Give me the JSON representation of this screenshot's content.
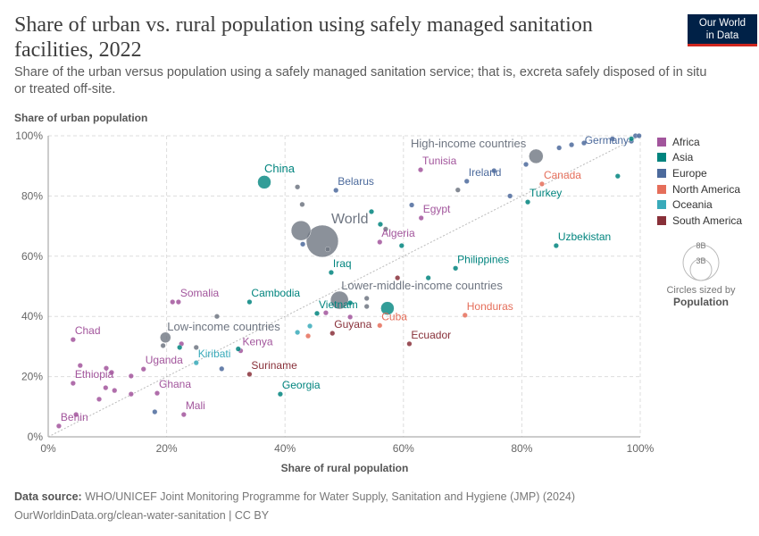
{
  "header": {
    "title": "Share of urban vs. rural population using safely managed sanitation facilities, 2022",
    "subtitle": "Share of the urban versus population using a safely managed sanitation service; that is, excreta safely disposed of in situ or treated off-site.",
    "logo_line1": "Our World",
    "logo_line2": "in Data"
  },
  "legend": {
    "items": [
      {
        "label": "Africa",
        "color": "#a2559c"
      },
      {
        "label": "Asia",
        "color": "#00847e"
      },
      {
        "label": "Europe",
        "color": "#4c6a9c"
      },
      {
        "label": "North America",
        "color": "#e56e5a"
      },
      {
        "label": "Oceania",
        "color": "#38aaba"
      },
      {
        "label": "South America",
        "color": "#883039"
      }
    ],
    "size_big": "8B",
    "size_small": "3B",
    "size_caption": "Circles sized by",
    "size_variable": "Population"
  },
  "footer": {
    "source_label": "Data source:",
    "source": "WHO/UNICEF Joint Monitoring Programme for Water Supply, Sanitation and Hygiene (JMP) (2024)",
    "url": "OurWorldinData.org/clean-water-sanitation | CC BY"
  },
  "chart_data": {
    "type": "scatter",
    "xlabel": "Share of rural population",
    "ylabel": "Share of urban population",
    "xlim": [
      0,
      100
    ],
    "ylim": [
      0,
      100
    ],
    "xticks": [
      "0%",
      "20%",
      "40%",
      "60%",
      "80%",
      "100%"
    ],
    "yticks": [
      "0%",
      "20%",
      "40%",
      "60%",
      "80%",
      "100%"
    ],
    "grid": true,
    "diagonal_reference_line": true,
    "legend_placement": "right",
    "aggregate_color": "#6e7581",
    "points": [
      {
        "name": "World",
        "region": "aggregate",
        "x": 46.3,
        "y": 65.0,
        "pop": 8
      },
      {
        "name": "",
        "region": "aggregate",
        "x": 42.7,
        "y": 68.5,
        "pop": 3
      },
      {
        "name": "Lower-middle-income countries",
        "region": "aggregate",
        "x": 49.2,
        "y": 45.4,
        "pop": 2.5
      },
      {
        "name": "High-income countries",
        "region": "aggregate",
        "x": 82.4,
        "y": 93.2,
        "pop": 1.6
      },
      {
        "name": "Low-income countries",
        "region": "aggregate",
        "x": 19.8,
        "y": 33.0,
        "pop": 0.9
      },
      {
        "name": "China",
        "region": "Asia",
        "x": 36.5,
        "y": 84.6,
        "pop": 1.4
      },
      {
        "name": "",
        "region": "Asia",
        "x": 57.3,
        "y": 42.7,
        "pop": 1.4
      },
      {
        "name": "Belarus",
        "region": "Europe",
        "x": 48.6,
        "y": 81.9
      },
      {
        "name": "Iraq",
        "region": "Asia",
        "x": 47.8,
        "y": 54.6
      },
      {
        "name": "Vietnam",
        "region": "Asia",
        "x": 45.4,
        "y": 41.0
      },
      {
        "name": "Somalia",
        "region": "Africa",
        "x": 22.0,
        "y": 44.8
      },
      {
        "name": "",
        "region": "Africa",
        "x": 21.0,
        "y": 44.8
      },
      {
        "name": "Cambodia",
        "region": "Asia",
        "x": 34.0,
        "y": 44.8
      },
      {
        "name": "Chad",
        "region": "Africa",
        "x": 4.2,
        "y": 32.3
      },
      {
        "name": "Uganda",
        "region": "Africa",
        "x": 16.1,
        "y": 22.5
      },
      {
        "name": "Ethiopia",
        "region": "Africa",
        "x": 4.2,
        "y": 17.8
      },
      {
        "name": "Ghana",
        "region": "Africa",
        "x": 18.4,
        "y": 14.5
      },
      {
        "name": "Mali",
        "region": "Africa",
        "x": 22.9,
        "y": 7.4
      },
      {
        "name": "Benin",
        "region": "Africa",
        "x": 1.8,
        "y": 3.6
      },
      {
        "name": "Kiribati",
        "region": "Oceania",
        "x": 25.0,
        "y": 24.6
      },
      {
        "name": "Kenya",
        "region": "Africa",
        "x": 32.5,
        "y": 28.6
      },
      {
        "name": "",
        "region": "Asia",
        "x": 32.1,
        "y": 29.2
      },
      {
        "name": "Suriname",
        "region": "South America",
        "x": 34.0,
        "y": 20.8
      },
      {
        "name": "Georgia",
        "region": "Asia",
        "x": 39.2,
        "y": 14.2
      },
      {
        "name": "Guyana",
        "region": "South America",
        "x": 48.0,
        "y": 34.4
      },
      {
        "name": "Cuba",
        "region": "North America",
        "x": 56.0,
        "y": 37.0
      },
      {
        "name": "Honduras",
        "region": "North America",
        "x": 70.4,
        "y": 40.4
      },
      {
        "name": "Ecuador",
        "region": "South America",
        "x": 61.0,
        "y": 30.9
      },
      {
        "name": "Philippines",
        "region": "Asia",
        "x": 68.8,
        "y": 56.0
      },
      {
        "name": "Uzbekistan",
        "region": "Asia",
        "x": 85.8,
        "y": 63.5
      },
      {
        "name": "Turkey",
        "region": "Asia",
        "x": 81.0,
        "y": 78.0
      },
      {
        "name": "Canada",
        "region": "North America",
        "x": 83.4,
        "y": 84.0
      },
      {
        "name": "Ireland",
        "region": "Europe",
        "x": 70.7,
        "y": 84.9
      },
      {
        "name": "Tunisia",
        "region": "Africa",
        "x": 62.9,
        "y": 88.7
      },
      {
        "name": "Egypt",
        "region": "Africa",
        "x": 63.0,
        "y": 72.7
      },
      {
        "name": "Algeria",
        "region": "Africa",
        "x": 56.0,
        "y": 64.7
      },
      {
        "name": "Germany",
        "region": "Europe",
        "x": 98.5,
        "y": 98.2
      },
      {
        "name": "",
        "region": "aggregate",
        "x": 42.1,
        "y": 83.0
      },
      {
        "name": "",
        "region": "aggregate",
        "x": 42.9,
        "y": 77.2
      },
      {
        "name": "",
        "region": "Europe",
        "x": 43.0,
        "y": 64.0
      },
      {
        "name": "",
        "region": "aggregate",
        "x": 47.2,
        "y": 62.3
      },
      {
        "name": "",
        "region": "Asia",
        "x": 54.6,
        "y": 74.8
      },
      {
        "name": "",
        "region": "Asia",
        "x": 56.1,
        "y": 70.6
      },
      {
        "name": "",
        "region": "aggregate",
        "x": 57.0,
        "y": 69.0
      },
      {
        "name": "",
        "region": "Asia",
        "x": 59.7,
        "y": 63.5
      },
      {
        "name": "",
        "region": "Europe",
        "x": 61.4,
        "y": 77.0
      },
      {
        "name": "",
        "region": "aggregate",
        "x": 69.2,
        "y": 82.0
      },
      {
        "name": "",
        "region": "Europe",
        "x": 78.0,
        "y": 80.0
      },
      {
        "name": "",
        "region": "Europe",
        "x": 75.3,
        "y": 88.4
      },
      {
        "name": "",
        "region": "Europe",
        "x": 80.7,
        "y": 90.5
      },
      {
        "name": "",
        "region": "Europe",
        "x": 86.3,
        "y": 96.0
      },
      {
        "name": "",
        "region": "Europe",
        "x": 88.4,
        "y": 97.0
      },
      {
        "name": "",
        "region": "Europe",
        "x": 90.5,
        "y": 97.6
      },
      {
        "name": "",
        "region": "Europe",
        "x": 95.3,
        "y": 99.0
      },
      {
        "name": "",
        "region": "Asia",
        "x": 96.2,
        "y": 86.6
      },
      {
        "name": "",
        "region": "Europe",
        "x": 99.2,
        "y": 100
      },
      {
        "name": "",
        "region": "Europe",
        "x": 99.8,
        "y": 100
      },
      {
        "name": "",
        "region": "Asia",
        "x": 98.5,
        "y": 99.0
      },
      {
        "name": "",
        "region": "South America",
        "x": 59.0,
        "y": 52.8
      },
      {
        "name": "",
        "region": "Asia",
        "x": 64.2,
        "y": 52.8
      },
      {
        "name": "",
        "region": "aggregate",
        "x": 28.5,
        "y": 40.0
      },
      {
        "name": "",
        "region": "aggregate",
        "x": 19.4,
        "y": 30.3
      },
      {
        "name": "",
        "region": "Africa",
        "x": 22.5,
        "y": 30.9
      },
      {
        "name": "",
        "region": "Asia",
        "x": 22.2,
        "y": 29.7
      },
      {
        "name": "",
        "region": "aggregate",
        "x": 25.0,
        "y": 29.7
      },
      {
        "name": "",
        "region": "Africa",
        "x": 5.4,
        "y": 23.7
      },
      {
        "name": "",
        "region": "Africa",
        "x": 9.8,
        "y": 22.8
      },
      {
        "name": "",
        "region": "Africa",
        "x": 10.7,
        "y": 21.4
      },
      {
        "name": "",
        "region": "Africa",
        "x": 14.0,
        "y": 20.2
      },
      {
        "name": "",
        "region": "Africa",
        "x": 9.7,
        "y": 16.3
      },
      {
        "name": "",
        "region": "Africa",
        "x": 11.2,
        "y": 15.4
      },
      {
        "name": "",
        "region": "Africa",
        "x": 14.0,
        "y": 14.2
      },
      {
        "name": "",
        "region": "Africa",
        "x": 8.6,
        "y": 12.5
      },
      {
        "name": "",
        "region": "Europe",
        "x": 18.0,
        "y": 8.3
      },
      {
        "name": "",
        "region": "Africa",
        "x": 4.7,
        "y": 7.4
      },
      {
        "name": "",
        "region": "Europe",
        "x": 29.3,
        "y": 22.6
      },
      {
        "name": "",
        "region": "Oceania",
        "x": 42.1,
        "y": 34.7
      },
      {
        "name": "",
        "region": "Oceania",
        "x": 44.2,
        "y": 36.8
      },
      {
        "name": "",
        "region": "North America",
        "x": 43.9,
        "y": 33.5
      },
      {
        "name": "",
        "region": "Africa",
        "x": 46.9,
        "y": 41.2
      },
      {
        "name": "",
        "region": "aggregate",
        "x": 53.8,
        "y": 46.0
      },
      {
        "name": "",
        "region": "aggregate",
        "x": 53.8,
        "y": 43.3
      },
      {
        "name": "",
        "region": "Asia",
        "x": 51.0,
        "y": 44.5
      },
      {
        "name": "",
        "region": "Africa",
        "x": 51.0,
        "y": 39.8
      }
    ]
  }
}
